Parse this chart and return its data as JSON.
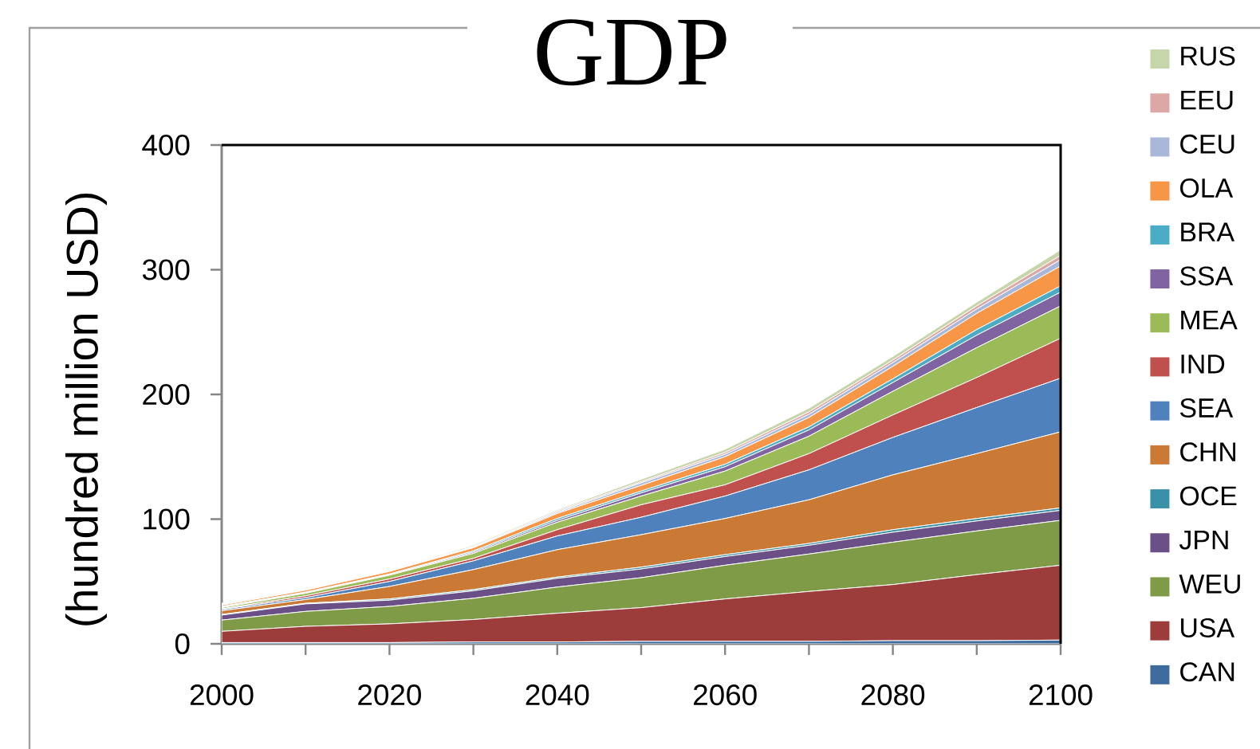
{
  "chart_data": {
    "type": "area",
    "title": "GDP",
    "ylabel": "(hundred million USD)",
    "stacked": true,
    "legend": "right",
    "x": [
      2000,
      2010,
      2020,
      2030,
      2040,
      2050,
      2060,
      2070,
      2080,
      2090,
      2100
    ],
    "xlim": [
      2000,
      2100
    ],
    "xticks": [
      2000,
      {
        "value": 2010,
        "label": null
      },
      2020,
      {
        "value": 2030,
        "label": null
      },
      2040,
      {
        "value": 2050,
        "label": null
      },
      2060,
      {
        "value": 2070,
        "label": null
      },
      2080,
      {
        "value": 2090,
        "label": null
      },
      2100
    ],
    "ylim": [
      0,
      400
    ],
    "yticks": [
      0,
      100,
      200,
      300,
      400
    ],
    "series": [
      {
        "name": "CAN",
        "color": "#3f6c9e",
        "values": [
          1,
          1,
          1,
          1.5,
          1.5,
          2,
          2,
          2,
          2.5,
          2.5,
          3
        ]
      },
      {
        "name": "USA",
        "color": "#9d3d3b",
        "values": [
          9,
          13,
          15,
          18,
          23,
          27,
          34,
          40,
          45,
          53,
          60
        ]
      },
      {
        "name": "WEU",
        "color": "#7f9b48",
        "values": [
          9,
          12,
          14,
          17,
          21,
          24,
          27,
          30,
          34,
          35,
          36
        ]
      },
      {
        "name": "JPN",
        "color": "#6a5087",
        "values": [
          4,
          6,
          5,
          6,
          7,
          7,
          7,
          7,
          8,
          8,
          8
        ]
      },
      {
        "name": "OCE",
        "color": "#3a91a7",
        "values": [
          0.5,
          0.5,
          1,
          1,
          1,
          1.5,
          1.5,
          1.5,
          2,
          2,
          2
        ]
      },
      {
        "name": "CHN",
        "color": "#cb7a36",
        "values": [
          3,
          3,
          10,
          16,
          22,
          26,
          29,
          35,
          44,
          52,
          61
        ]
      },
      {
        "name": "SEA",
        "color": "#4f81bd",
        "values": [
          1,
          1.5,
          4,
          7,
          11,
          14,
          18,
          24,
          30,
          37,
          43
        ]
      },
      {
        "name": "IND",
        "color": "#c0504d",
        "values": [
          0.5,
          1.5,
          2,
          2,
          5,
          10,
          9,
          13,
          18,
          24,
          32
        ]
      },
      {
        "name": "MEA",
        "color": "#9bbb59",
        "values": [
          1,
          2,
          3,
          4,
          6,
          7,
          11,
          14,
          19,
          24,
          26
        ]
      },
      {
        "name": "SSA",
        "color": "#8064a2",
        "values": [
          0.5,
          0.5,
          0.5,
          1,
          1.5,
          2.5,
          3.5,
          5,
          7,
          10,
          11
        ]
      },
      {
        "name": "BRA",
        "color": "#4bacc6",
        "values": [
          0.5,
          0.5,
          0.5,
          1,
          1.5,
          1.5,
          2,
          2.5,
          3,
          4.5,
          5
        ]
      },
      {
        "name": "OLA",
        "color": "#f79646",
        "values": [
          1,
          1.5,
          2,
          2.5,
          4,
          4.5,
          6,
          7.5,
          10,
          13,
          16
        ]
      },
      {
        "name": "CEU",
        "color": "#a9b8d9",
        "values": [
          0.5,
          0.5,
          0.5,
          0.5,
          1,
          2,
          2,
          2.5,
          3,
          3.5,
          5
        ]
      },
      {
        "name": "EEU",
        "color": "#dba8a6",
        "values": [
          0.5,
          0.5,
          0.5,
          0.5,
          1,
          1,
          1.5,
          2,
          2,
          2.5,
          3.5
        ]
      },
      {
        "name": "RUS",
        "color": "#c6d6aa",
        "values": [
          0.5,
          0.5,
          0.5,
          1,
          1,
          2,
          2.5,
          3,
          3,
          3,
          4.5
        ]
      }
    ]
  }
}
